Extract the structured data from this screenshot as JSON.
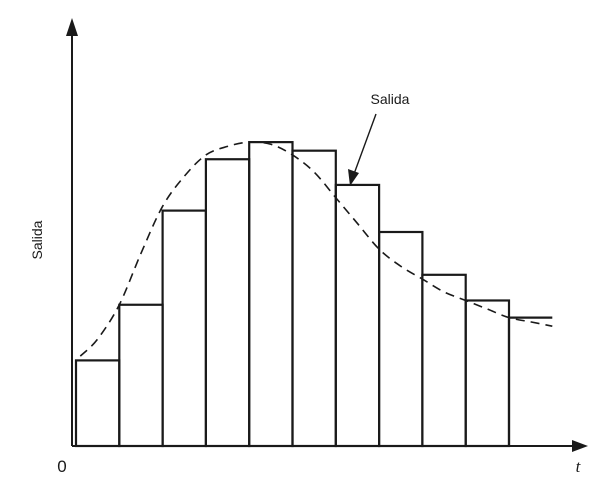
{
  "chart_data": {
    "type": "bar",
    "ylabel": "Salida",
    "xlabel": "t",
    "origin_label": "0",
    "annotation": "Salida",
    "xlim": [
      0,
      11
    ],
    "ylim": [
      0,
      9.5
    ],
    "grid": false,
    "axes_have_arrows": true,
    "series": [
      {
        "kind": "step",
        "values": [
          2.0,
          3.3,
          5.5,
          6.7,
          7.1,
          6.9,
          6.1,
          5.0,
          4.0,
          3.4,
          3.0
        ]
      },
      {
        "kind": "dashed-curve",
        "x": [
          0.1,
          0.5,
          1.0,
          1.5,
          2.0,
          2.5,
          3.0,
          3.5,
          4.0,
          4.5,
          5.0,
          5.5,
          6.0,
          6.5,
          7.0,
          7.5,
          8.0,
          8.5,
          9.0,
          9.5,
          10.0,
          10.5,
          11.0
        ],
        "y": [
          2.1,
          2.5,
          3.3,
          4.5,
          5.6,
          6.3,
          6.8,
          7.0,
          7.1,
          7.05,
          6.8,
          6.4,
          5.8,
          5.2,
          4.6,
          4.2,
          3.9,
          3.6,
          3.4,
          3.2,
          3.0,
          2.9,
          2.8
        ]
      }
    ],
    "colors": {
      "ink": "#1a1a1a",
      "background": "#ffffff"
    }
  }
}
